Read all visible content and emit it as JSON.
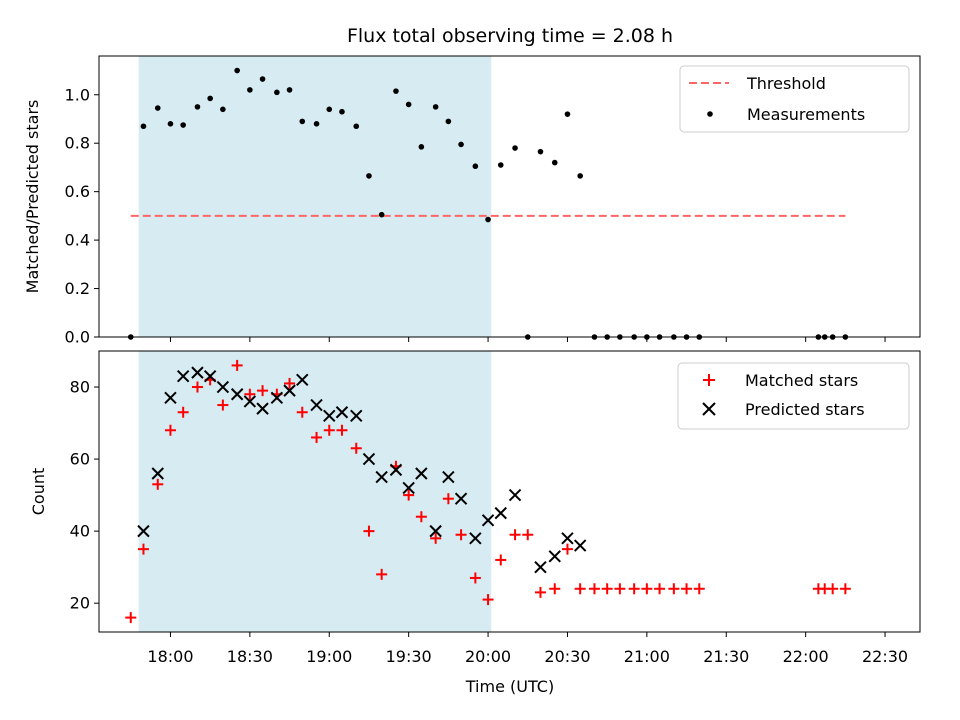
{
  "title": "Flux total observing time = 2.08 h",
  "colors": {
    "shade": "#add8e6",
    "threshold": "#ff6666",
    "measurement": "#000000",
    "matched": "#ff0000",
    "predicted": "#000000"
  },
  "xaxis": {
    "label": "Time (UTC)",
    "range_hours": [
      17.55,
      22.72
    ],
    "ticks": [
      18.0,
      18.5,
      19.0,
      19.5,
      20.0,
      20.5,
      21.0,
      21.5,
      22.0,
      22.5
    ],
    "tick_labels": [
      "18:00",
      "18:30",
      "19:00",
      "19:30",
      "20:00",
      "20:30",
      "21:00",
      "21:30",
      "22:00",
      "22:30"
    ]
  },
  "chart_data": [
    {
      "type": "scatter",
      "panel": "top",
      "ylabel": "Matched/Predicted stars",
      "ylim": [
        0,
        1.16
      ],
      "yticks": [
        0.0,
        0.2,
        0.4,
        0.6,
        0.8,
        1.0
      ],
      "ytick_labels": [
        "0.0",
        "0.2",
        "0.4",
        "0.6",
        "0.8",
        "1.0"
      ],
      "shaded_span": [
        17.8,
        20.02
      ],
      "legend_position": "top-right",
      "threshold": {
        "name": "Threshold",
        "value": 0.5,
        "x_range": [
          17.75,
          22.25
        ]
      },
      "measurements": {
        "name": "Measurements",
        "x": [
          17.75,
          17.83,
          17.92,
          18.0,
          18.08,
          18.17,
          18.25,
          18.33,
          18.42,
          18.5,
          18.58,
          18.67,
          18.75,
          18.83,
          18.92,
          19.0,
          19.08,
          19.17,
          19.25,
          19.33,
          19.42,
          19.5,
          19.58,
          19.67,
          19.75,
          19.83,
          19.92,
          20.0,
          20.08,
          20.17,
          20.25,
          20.33,
          20.42,
          20.5,
          20.58,
          20.67,
          20.75,
          20.83,
          20.92,
          21.0,
          21.08,
          21.17,
          21.25,
          21.33,
          22.08,
          22.12,
          22.17,
          22.25
        ],
        "y": [
          0.0,
          0.87,
          0.945,
          0.88,
          0.875,
          0.95,
          0.985,
          0.94,
          1.1,
          1.02,
          1.065,
          1.01,
          1.02,
          0.89,
          0.88,
          0.94,
          0.93,
          0.87,
          0.665,
          0.505,
          1.015,
          0.96,
          0.785,
          0.95,
          0.89,
          0.795,
          0.705,
          0.485,
          0.71,
          0.78,
          0.0,
          0.765,
          0.72,
          0.92,
          0.665,
          0.0,
          0.0,
          0.0,
          0.0,
          0.0,
          0.0,
          0.0,
          0.0,
          0.0,
          0.0,
          0.0,
          0.0,
          0.0
        ]
      }
    },
    {
      "type": "scatter",
      "panel": "bottom",
      "ylabel": "Count",
      "ylim": [
        12,
        90
      ],
      "yticks": [
        20,
        40,
        60,
        80
      ],
      "ytick_labels": [
        "20",
        "40",
        "60",
        "80"
      ],
      "shaded_span": [
        17.8,
        20.02
      ],
      "legend_position": "top-right",
      "series": [
        {
          "name": "Matched stars",
          "marker": "+",
          "x": [
            17.75,
            17.83,
            17.92,
            18.0,
            18.08,
            18.17,
            18.25,
            18.33,
            18.42,
            18.5,
            18.58,
            18.67,
            18.75,
            18.83,
            18.92,
            19.0,
            19.08,
            19.17,
            19.25,
            19.33,
            19.42,
            19.5,
            19.58,
            19.67,
            19.75,
            19.83,
            19.92,
            20.0,
            20.08,
            20.17,
            20.25,
            20.33,
            20.42,
            20.5,
            20.58,
            20.67,
            20.75,
            20.83,
            20.92,
            21.0,
            21.08,
            21.17,
            21.25,
            21.33,
            22.08,
            22.12,
            22.17,
            22.25
          ],
          "y": [
            16,
            35,
            53,
            68,
            73,
            80,
            82,
            75,
            86,
            78,
            79,
            78,
            81,
            73,
            66,
            68,
            68,
            63,
            40,
            28,
            58,
            50,
            44,
            38,
            49,
            39,
            27,
            21,
            32,
            39,
            39,
            23,
            24,
            35,
            24,
            24,
            24,
            24,
            24,
            24,
            24,
            24,
            24,
            24,
            24,
            24,
            24,
            24
          ]
        },
        {
          "name": "Predicted stars",
          "marker": "x",
          "x": [
            17.83,
            17.92,
            18.0,
            18.08,
            18.17,
            18.25,
            18.33,
            18.42,
            18.5,
            18.58,
            18.67,
            18.75,
            18.83,
            18.92,
            19.0,
            19.08,
            19.17,
            19.25,
            19.33,
            19.42,
            19.5,
            19.58,
            19.67,
            19.75,
            19.83,
            19.92,
            20.0,
            20.08,
            20.17,
            20.33,
            20.42,
            20.5,
            20.58
          ],
          "y": [
            40,
            56,
            77,
            83,
            84,
            83,
            80,
            78,
            76,
            74,
            77,
            79,
            82,
            75,
            72,
            73,
            72,
            60,
            55,
            57,
            52,
            56,
            40,
            55,
            49,
            38,
            43,
            45,
            50,
            30,
            33,
            38,
            36
          ]
        }
      ]
    }
  ]
}
